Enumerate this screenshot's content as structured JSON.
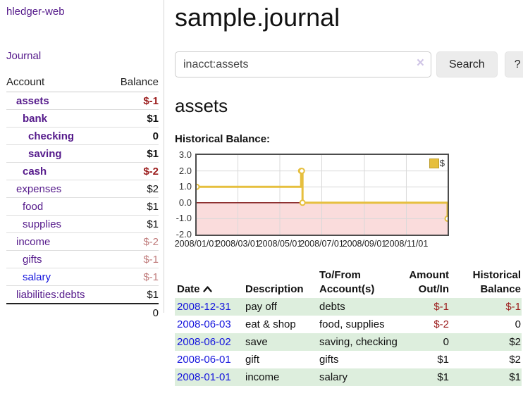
{
  "colors": {
    "purple": "#551a8b",
    "link-blue": "#1515dd",
    "neg-red": "#9b1c1c",
    "neg-red-soft": "#c07c7c",
    "row-green": "#ddeedd",
    "chart-yellow": "#e6bf3e",
    "chart-pink": "#fadcdc",
    "zero-line": "#7a0c0c"
  },
  "app": {
    "brand": "hledger-web",
    "nav_journal": "Journal"
  },
  "sidebar": {
    "columns": {
      "account": "Account",
      "balance": "Balance"
    },
    "accounts": [
      {
        "name": "assets",
        "depth": 1,
        "balance": "$-1",
        "bold": true,
        "negative": true
      },
      {
        "name": "bank",
        "depth": 2,
        "balance": "$1",
        "bold": true
      },
      {
        "name": "checking",
        "depth": 3,
        "balance": "0",
        "bold": true
      },
      {
        "name": "saving",
        "depth": 3,
        "balance": "$1",
        "bold": true
      },
      {
        "name": "cash",
        "depth": 2,
        "balance": "$-2",
        "bold": true,
        "negative": true
      },
      {
        "name": "expenses",
        "depth": 1,
        "balance": "$2"
      },
      {
        "name": "food",
        "depth": 2,
        "balance": "$1"
      },
      {
        "name": "supplies",
        "depth": 2,
        "balance": "$1"
      },
      {
        "name": "income",
        "depth": 1,
        "balance": "$-2",
        "negative_soft": true
      },
      {
        "name": "gifts",
        "depth": 2,
        "balance": "$-1",
        "negative_soft": true
      },
      {
        "name": "salary",
        "depth": 2,
        "balance": "$-1",
        "negative_soft": true,
        "link_blue": true
      },
      {
        "name": "liabilities:debts",
        "depth": 1,
        "balance": "$1"
      }
    ],
    "total": "0"
  },
  "header": {
    "title": "sample.journal"
  },
  "search": {
    "value": "inacct:assets",
    "clear_icon": "×",
    "button_label": "Search",
    "help_label": "?"
  },
  "account_page": {
    "heading": "assets"
  },
  "chart_data": {
    "type": "line",
    "step": true,
    "title": "Historical Balance:",
    "legend": [
      {
        "label": "$",
        "swatch_icon": "yellow-square-icon"
      }
    ],
    "x_range": [
      "2008-01-01",
      "2008-12-31"
    ],
    "ylim": [
      -2,
      3
    ],
    "y_ticks": [
      3,
      2,
      1,
      0,
      -1,
      -2
    ],
    "x_ticks": [
      {
        "label": "2008/01/01",
        "date": "2008-01-01"
      },
      {
        "label": "2008/03/01",
        "date": "2008-03-01"
      },
      {
        "label": "2008/05/01",
        "date": "2008-05-01"
      },
      {
        "label": "2008/07/01",
        "date": "2008-07-01"
      },
      {
        "label": "2008/09/01",
        "date": "2008-09-01"
      },
      {
        "label": "2008/11/01",
        "date": "2008-11-01"
      }
    ],
    "series": [
      {
        "name": "$",
        "points": [
          [
            "2008-01-01",
            1
          ],
          [
            "2008-06-01",
            2
          ],
          [
            "2008-06-02",
            2
          ],
          [
            "2008-06-03",
            0
          ],
          [
            "2008-12-31",
            -1
          ]
        ]
      }
    ],
    "negative_region_shaded": true,
    "grid": true,
    "legend_position": "top-right"
  },
  "register": {
    "columns": [
      {
        "label": "Date",
        "sortable": true,
        "sort": "asc"
      },
      {
        "label": "Description"
      },
      {
        "label": "To/From Account(s)"
      },
      {
        "label": "Amount Out/In",
        "numeric": true
      },
      {
        "label": "Historical Balance",
        "numeric": true
      }
    ],
    "rows": [
      {
        "date": "2008-12-31",
        "description": "pay off",
        "accounts": "debts",
        "amount": "$-1",
        "balance": "$-1",
        "amount_neg": true,
        "balance_neg": true
      },
      {
        "date": "2008-06-03",
        "description": "eat & shop",
        "accounts": "food, supplies",
        "amount": "$-2",
        "balance": "0",
        "amount_neg": true
      },
      {
        "date": "2008-06-02",
        "description": "save",
        "accounts": "saving, checking",
        "amount": "0",
        "balance": "$2"
      },
      {
        "date": "2008-06-01",
        "description": "gift",
        "accounts": "gifts",
        "amount": "$1",
        "balance": "$2"
      },
      {
        "date": "2008-01-01",
        "description": "income",
        "accounts": "salary",
        "amount": "$1",
        "balance": "$1"
      }
    ]
  }
}
